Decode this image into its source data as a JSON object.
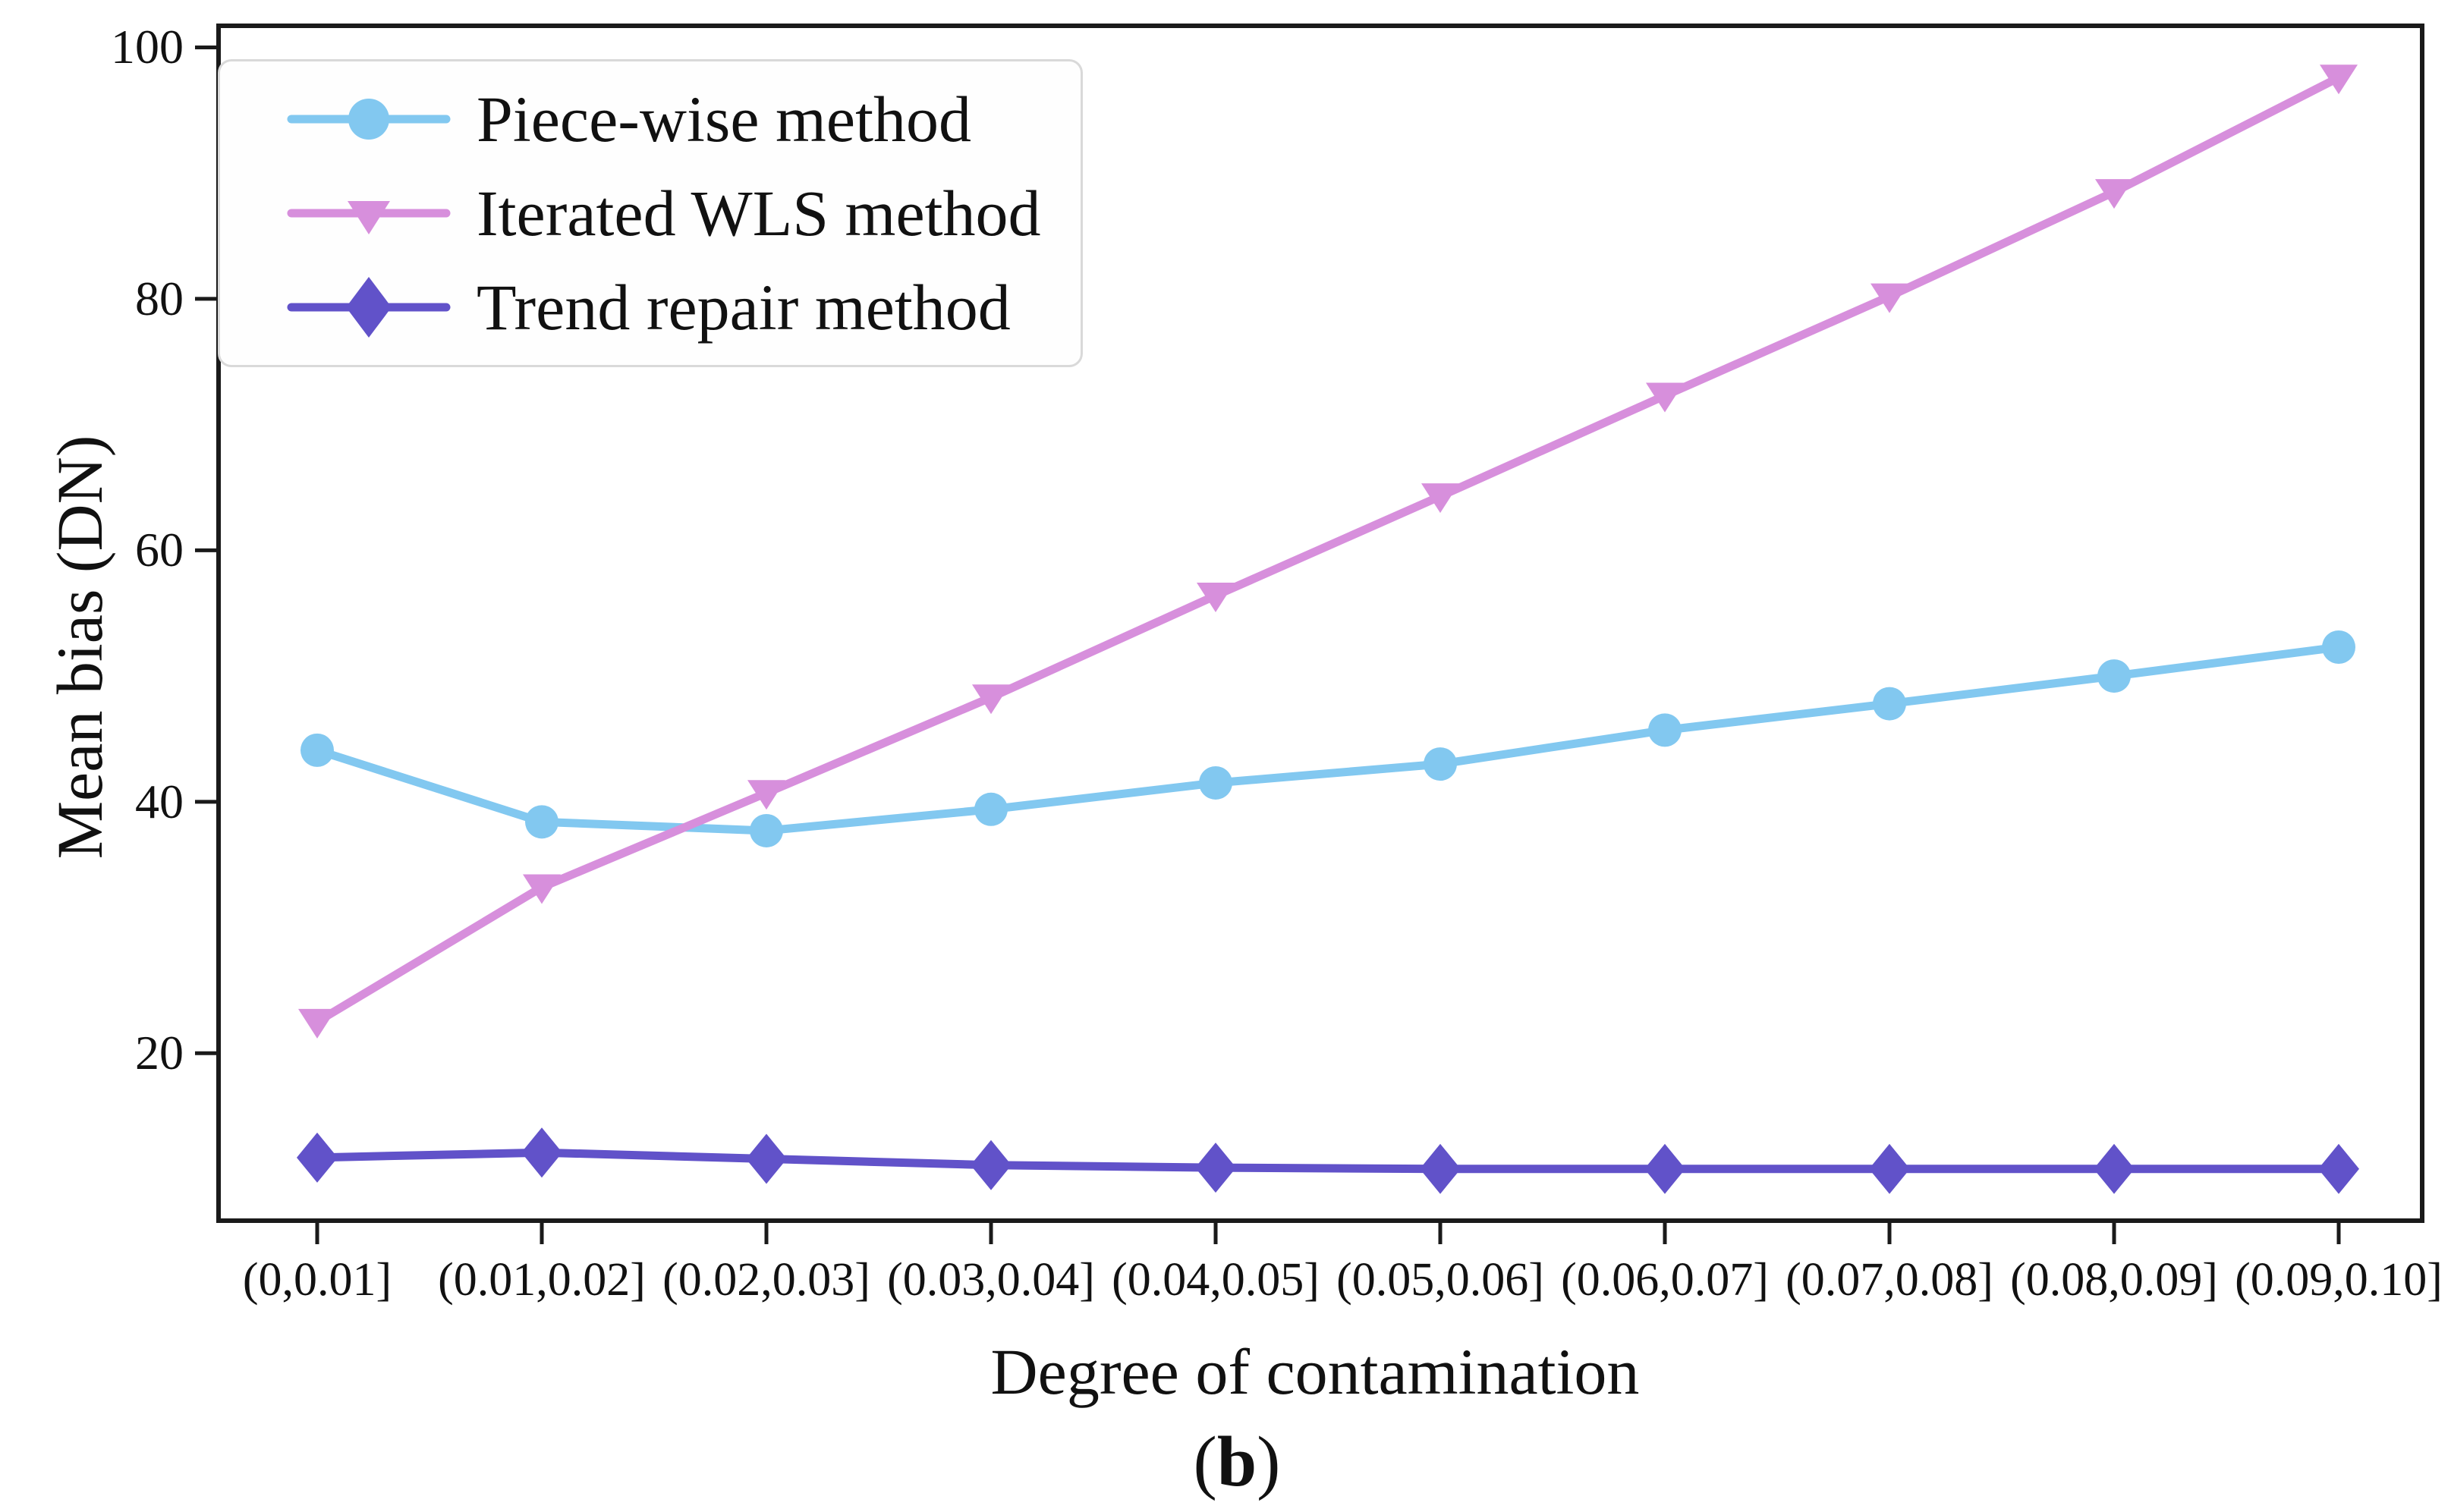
{
  "chart_data": {
    "type": "line",
    "title": "",
    "xlabel": "Degree of contamination",
    "ylabel": "Mean bias (DN)",
    "caption": {
      "open": "(",
      "letter": "b",
      "close": ")"
    },
    "categories": [
      "(0,0.01]",
      "(0.01,0.02]",
      "(0.02,0.03]",
      "(0.03,0.04]",
      "(0.04,0.05]",
      "(0.05,0.06]",
      "(0.06,0.07]",
      "(0.07,0.08]",
      "(0.08,0.09]",
      "(0.09,0.10]"
    ],
    "y_ticks": [
      {
        "label": "100",
        "value": 100
      },
      {
        "label": "80",
        "value": 80
      },
      {
        "label": "60",
        "value": 60
      },
      {
        "label": "40",
        "value": 40
      },
      {
        "label": "20",
        "value": 20
      }
    ],
    "ylim": [
      6.5,
      101.9
    ],
    "grid": false,
    "legend_position": "upper left",
    "axis_color": "#1a1a1a",
    "series": [
      {
        "name": "Piece-wise method",
        "marker": "circle",
        "color": "#82C8F0",
        "values": [
          44.1,
          38.4,
          37.7,
          39.4,
          41.5,
          43.0,
          45.7,
          47.8,
          50.0,
          52.3
        ]
      },
      {
        "name": "Iterated WLS method",
        "marker": "triangle-down",
        "color": "#D78FDC",
        "values": [
          22.5,
          33.2,
          40.7,
          48.3,
          56.4,
          64.3,
          72.3,
          80.2,
          88.5,
          97.6
        ]
      },
      {
        "name": "Trend repair method",
        "marker": "diamond",
        "color": "#6152C9",
        "values": [
          11.7,
          12.1,
          11.6,
          11.1,
          10.9,
          10.8,
          10.8,
          10.8,
          10.8,
          10.8
        ]
      }
    ]
  }
}
